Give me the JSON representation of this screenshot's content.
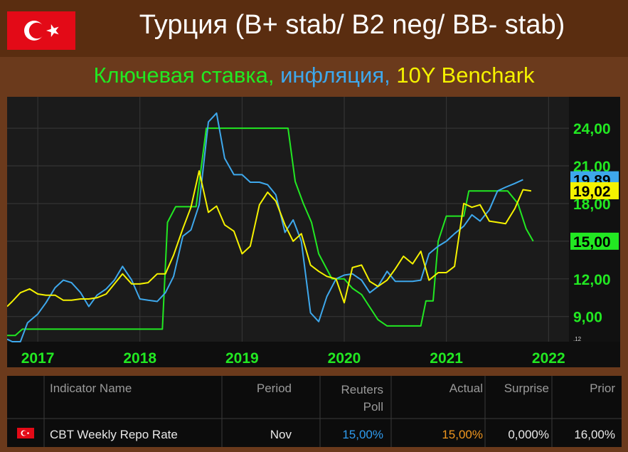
{
  "header": {
    "title": "Турция (B+ stab/ B2 neg/ BB- stab)",
    "subtitle_parts": [
      {
        "text": "Ключевая ставка, ",
        "color": "#22e822"
      },
      {
        "text": "инфляция, ",
        "color": "#3ea8ec"
      },
      {
        "text": "10Y Benchark",
        "color": "#f5f200"
      }
    ]
  },
  "chart_data": {
    "type": "line",
    "x_ticks": [
      "2017",
      "2018",
      "2019",
      "2020",
      "2021",
      "2022"
    ],
    "x_range": [
      2016.7,
      2022.2
    ],
    "y_ticks": [
      "9,00",
      "12,00",
      "15,00",
      "18,00",
      "21,00",
      "24,00"
    ],
    "y_range": [
      7.0,
      26.5
    ],
    "grid": true,
    "corner_label": ".12",
    "series": [
      {
        "key": "policy_rate",
        "color": "#22e822",
        "end_label": "15,00",
        "points": [
          [
            2016.7,
            7.5
          ],
          [
            2016.78,
            7.5
          ],
          [
            2016.85,
            8.0
          ],
          [
            2017.0,
            8.0
          ],
          [
            2017.5,
            8.0
          ],
          [
            2018.0,
            8.0
          ],
          [
            2018.2,
            8.0
          ],
          [
            2018.22,
            8.0
          ],
          [
            2018.27,
            16.5
          ],
          [
            2018.35,
            17.75
          ],
          [
            2018.42,
            17.75
          ],
          [
            2018.55,
            17.75
          ],
          [
            2018.65,
            24.0
          ],
          [
            2019.0,
            24.0
          ],
          [
            2019.38,
            24.0
          ],
          [
            2019.45,
            24.0
          ],
          [
            2019.52,
            19.75
          ],
          [
            2019.6,
            18.0
          ],
          [
            2019.68,
            16.5
          ],
          [
            2019.75,
            14.0
          ],
          [
            2019.88,
            12.0
          ],
          [
            2020.0,
            12.0
          ],
          [
            2020.08,
            11.25
          ],
          [
            2020.17,
            10.75
          ],
          [
            2020.25,
            9.75
          ],
          [
            2020.33,
            8.75
          ],
          [
            2020.42,
            8.25
          ],
          [
            2020.5,
            8.25
          ],
          [
            2020.67,
            8.25
          ],
          [
            2020.75,
            8.25
          ],
          [
            2020.8,
            10.25
          ],
          [
            2020.87,
            10.25
          ],
          [
            2020.92,
            15.0
          ],
          [
            2021.0,
            17.0
          ],
          [
            2021.1,
            17.0
          ],
          [
            2021.17,
            17.0
          ],
          [
            2021.22,
            19.0
          ],
          [
            2021.5,
            19.0
          ],
          [
            2021.6,
            19.0
          ],
          [
            2021.7,
            18.0
          ],
          [
            2021.78,
            16.0
          ],
          [
            2021.85,
            15.0
          ]
        ]
      },
      {
        "key": "inflation",
        "color": "#3ea8ec",
        "end_label": "19,89",
        "points": [
          [
            2016.7,
            7.2
          ],
          [
            2016.75,
            7.0
          ],
          [
            2016.83,
            7.0
          ],
          [
            2016.9,
            8.5
          ],
          [
            2017.0,
            9.2
          ],
          [
            2017.08,
            10.1
          ],
          [
            2017.17,
            11.3
          ],
          [
            2017.25,
            11.9
          ],
          [
            2017.33,
            11.7
          ],
          [
            2017.42,
            10.9
          ],
          [
            2017.5,
            9.8
          ],
          [
            2017.58,
            10.7
          ],
          [
            2017.67,
            11.2
          ],
          [
            2017.75,
            11.9
          ],
          [
            2017.83,
            13.0
          ],
          [
            2017.92,
            11.9
          ],
          [
            2018.0,
            10.4
          ],
          [
            2018.08,
            10.3
          ],
          [
            2018.17,
            10.2
          ],
          [
            2018.25,
            10.9
          ],
          [
            2018.33,
            12.2
          ],
          [
            2018.42,
            15.4
          ],
          [
            2018.5,
            15.9
          ],
          [
            2018.58,
            17.9
          ],
          [
            2018.67,
            24.5
          ],
          [
            2018.75,
            25.2
          ],
          [
            2018.83,
            21.6
          ],
          [
            2018.92,
            20.3
          ],
          [
            2019.0,
            20.3
          ],
          [
            2019.08,
            19.7
          ],
          [
            2019.17,
            19.7
          ],
          [
            2019.25,
            19.5
          ],
          [
            2019.33,
            18.7
          ],
          [
            2019.42,
            15.7
          ],
          [
            2019.5,
            16.7
          ],
          [
            2019.58,
            15.0
          ],
          [
            2019.67,
            9.3
          ],
          [
            2019.75,
            8.6
          ],
          [
            2019.83,
            10.6
          ],
          [
            2019.92,
            12.0
          ],
          [
            2020.0,
            12.3
          ],
          [
            2020.08,
            12.4
          ],
          [
            2020.17,
            11.9
          ],
          [
            2020.25,
            10.9
          ],
          [
            2020.33,
            11.4
          ],
          [
            2020.42,
            12.6
          ],
          [
            2020.5,
            11.8
          ],
          [
            2020.58,
            11.8
          ],
          [
            2020.67,
            11.8
          ],
          [
            2020.75,
            11.9
          ],
          [
            2020.83,
            14.0
          ],
          [
            2020.92,
            14.6
          ],
          [
            2021.0,
            15.0
          ],
          [
            2021.08,
            15.6
          ],
          [
            2021.17,
            16.2
          ],
          [
            2021.25,
            17.1
          ],
          [
            2021.33,
            16.6
          ],
          [
            2021.42,
            17.5
          ],
          [
            2021.5,
            19.0
          ],
          [
            2021.58,
            19.3
          ],
          [
            2021.67,
            19.6
          ],
          [
            2021.75,
            19.9
          ]
        ]
      },
      {
        "key": "bond_10y",
        "color": "#f5f200",
        "end_label": "19,02",
        "points": [
          [
            2016.7,
            9.8
          ],
          [
            2016.75,
            10.2
          ],
          [
            2016.83,
            10.9
          ],
          [
            2016.92,
            11.2
          ],
          [
            2017.0,
            10.8
          ],
          [
            2017.08,
            10.7
          ],
          [
            2017.17,
            10.7
          ],
          [
            2017.25,
            10.3
          ],
          [
            2017.33,
            10.3
          ],
          [
            2017.42,
            10.4
          ],
          [
            2017.5,
            10.4
          ],
          [
            2017.58,
            10.5
          ],
          [
            2017.67,
            10.8
          ],
          [
            2017.75,
            11.6
          ],
          [
            2017.83,
            12.4
          ],
          [
            2017.92,
            11.6
          ],
          [
            2018.0,
            11.6
          ],
          [
            2018.08,
            11.7
          ],
          [
            2018.17,
            12.4
          ],
          [
            2018.25,
            12.4
          ],
          [
            2018.33,
            13.9
          ],
          [
            2018.42,
            16.0
          ],
          [
            2018.5,
            17.7
          ],
          [
            2018.58,
            20.6
          ],
          [
            2018.67,
            17.3
          ],
          [
            2018.75,
            17.8
          ],
          [
            2018.83,
            16.3
          ],
          [
            2018.92,
            15.8
          ],
          [
            2019.0,
            14.0
          ],
          [
            2019.08,
            14.6
          ],
          [
            2019.17,
            17.9
          ],
          [
            2019.25,
            18.9
          ],
          [
            2019.33,
            18.2
          ],
          [
            2019.42,
            16.3
          ],
          [
            2019.5,
            15.0
          ],
          [
            2019.58,
            15.6
          ],
          [
            2019.67,
            13.1
          ],
          [
            2019.75,
            12.6
          ],
          [
            2019.83,
            12.2
          ],
          [
            2019.92,
            12.0
          ],
          [
            2020.0,
            10.1
          ],
          [
            2020.08,
            12.9
          ],
          [
            2020.17,
            13.1
          ],
          [
            2020.25,
            11.8
          ],
          [
            2020.33,
            11.4
          ],
          [
            2020.42,
            11.9
          ],
          [
            2020.5,
            12.8
          ],
          [
            2020.58,
            13.8
          ],
          [
            2020.67,
            13.2
          ],
          [
            2020.75,
            14.2
          ],
          [
            2020.83,
            11.9
          ],
          [
            2020.92,
            12.5
          ],
          [
            2021.0,
            12.5
          ],
          [
            2021.08,
            13.0
          ],
          [
            2021.17,
            18.0
          ],
          [
            2021.25,
            17.7
          ],
          [
            2021.33,
            17.9
          ],
          [
            2021.42,
            16.6
          ],
          [
            2021.5,
            16.5
          ],
          [
            2021.58,
            16.4
          ],
          [
            2021.67,
            17.6
          ],
          [
            2021.75,
            19.1
          ],
          [
            2021.83,
            19.0
          ]
        ]
      }
    ]
  },
  "table": {
    "headers": {
      "indicator": "Indicator Name",
      "period": "Period",
      "poll": "Reuters Poll",
      "actual": "Actual",
      "surprise": "Surprise",
      "prior": "Prior"
    },
    "row": {
      "indicator": "CBT Weekly Repo Rate",
      "period": "Nov",
      "poll": "15,00%",
      "actual": "15,00%",
      "surprise": "0,000%",
      "prior": "16,00%"
    },
    "colors": {
      "poll": "#2f9cf0",
      "actual": "#f0961e",
      "text": "#e8e8e8",
      "header": "#9a9a9a"
    }
  }
}
